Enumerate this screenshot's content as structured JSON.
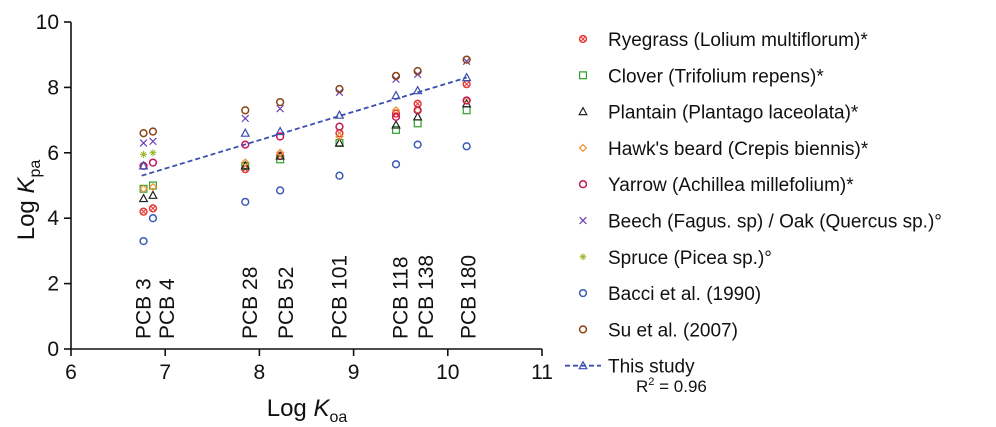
{
  "chart_data": {
    "type": "scatter",
    "xlabel": {
      "main": "Log ",
      "italic": "K",
      "sub": "oa"
    },
    "ylabel": {
      "main": "Log ",
      "italic": "K",
      "sub": "pa"
    },
    "xlim": [
      6,
      11
    ],
    "ylim": [
      0,
      10
    ],
    "xticks": [
      6,
      7,
      8,
      9,
      10,
      11
    ],
    "yticks": [
      0,
      2,
      4,
      6,
      8,
      10
    ],
    "grid": false,
    "legend_position": "right",
    "pcb_labels": [
      {
        "x": 6.77,
        "label": "PCB 3"
      },
      {
        "x": 7.02,
        "label": "PCB 4"
      },
      {
        "x": 7.9,
        "label": "PCB 28"
      },
      {
        "x": 8.28,
        "label": "PCB 52"
      },
      {
        "x": 8.85,
        "label": "PCB 101"
      },
      {
        "x": 9.5,
        "label": "PCB 118"
      },
      {
        "x": 9.77,
        "label": "PCB 138"
      },
      {
        "x": 10.22,
        "label": "PCB 180"
      }
    ],
    "series": [
      {
        "name": "Ryegrass (Lolium multiflorum)*",
        "marker": "circle-x",
        "color": "#e53935",
        "points": [
          [
            6.77,
            4.2
          ],
          [
            6.87,
            4.3
          ],
          [
            7.85,
            5.5
          ],
          [
            8.22,
            5.9
          ],
          [
            8.85,
            6.6
          ],
          [
            9.45,
            7.2
          ],
          [
            9.68,
            7.5
          ],
          [
            10.2,
            8.1
          ]
        ]
      },
      {
        "name": "Clover (Trifolium repens)*",
        "marker": "square",
        "color": "#2ca02c",
        "points": [
          [
            6.77,
            4.9
          ],
          [
            6.87,
            5.0
          ],
          [
            7.85,
            5.6
          ],
          [
            8.22,
            5.8
          ],
          [
            8.85,
            6.3
          ],
          [
            9.45,
            6.7
          ],
          [
            9.68,
            6.9
          ],
          [
            10.2,
            7.3
          ]
        ]
      },
      {
        "name": "Plantain (Plantago laceolata)*",
        "marker": "triangle",
        "color": "#222222",
        "points": [
          [
            6.77,
            4.6
          ],
          [
            6.87,
            4.7
          ],
          [
            7.85,
            5.6
          ],
          [
            8.22,
            5.9
          ],
          [
            8.85,
            6.3
          ],
          [
            9.45,
            6.85
          ],
          [
            9.68,
            7.1
          ],
          [
            10.2,
            7.5
          ]
        ]
      },
      {
        "name": "Hawk's beard (Crepis biennis)*",
        "marker": "diamond",
        "color": "#f28e2b",
        "points": [
          [
            6.77,
            4.9
          ],
          [
            6.87,
            4.95
          ],
          [
            7.85,
            5.7
          ],
          [
            8.22,
            6.0
          ],
          [
            8.85,
            6.5
          ],
          [
            9.45,
            7.3
          ],
          [
            9.68,
            7.3
          ],
          [
            10.2,
            7.6
          ]
        ]
      },
      {
        "name": "Yarrow (Achillea millefolium)*",
        "marker": "circle",
        "color": "#c2185b",
        "points": [
          [
            6.77,
            5.6
          ],
          [
            6.87,
            5.7
          ],
          [
            7.85,
            6.25
          ],
          [
            8.22,
            6.5
          ],
          [
            8.85,
            6.8
          ],
          [
            9.45,
            7.1
          ],
          [
            9.68,
            7.3
          ],
          [
            10.2,
            7.6
          ]
        ]
      },
      {
        "name": "Beech (Fagus. sp) / Oak (Quercus sp.)°",
        "marker": "x",
        "color": "#6a3fb5",
        "points": [
          [
            6.77,
            6.3
          ],
          [
            6.87,
            6.35
          ],
          [
            7.85,
            7.05
          ],
          [
            8.22,
            7.35
          ],
          [
            8.85,
            7.85
          ],
          [
            9.45,
            8.25
          ],
          [
            9.68,
            8.4
          ],
          [
            10.2,
            8.8
          ]
        ]
      },
      {
        "name": "Spruce (Picea sp.)°",
        "marker": "star",
        "color": "#9bb52d",
        "points": [
          [
            6.77,
            5.95
          ],
          [
            6.87,
            6.0
          ]
        ]
      },
      {
        "name": "Bacci et al. (1990)",
        "marker": "circle",
        "color": "#3b5bb5",
        "points": [
          [
            6.77,
            3.3
          ],
          [
            6.87,
            4.0
          ],
          [
            7.85,
            4.5
          ],
          [
            8.22,
            4.85
          ],
          [
            8.85,
            5.3
          ],
          [
            9.45,
            5.65
          ],
          [
            9.68,
            6.25
          ],
          [
            10.2,
            6.2
          ]
        ]
      },
      {
        "name": "Su et al. (2007)",
        "marker": "circle",
        "color": "#8b4513",
        "points": [
          [
            6.77,
            6.6
          ],
          [
            6.87,
            6.65
          ],
          [
            7.85,
            7.3
          ],
          [
            8.22,
            7.55
          ],
          [
            8.85,
            7.95
          ],
          [
            9.45,
            8.35
          ],
          [
            9.68,
            8.5
          ],
          [
            10.2,
            8.85
          ]
        ]
      },
      {
        "name": "This study",
        "marker": "triangle-dashed-line",
        "color": "#3a4fb0",
        "points": [
          [
            6.77,
            5.6
          ],
          [
            7.85,
            6.6
          ],
          [
            8.22,
            6.65
          ],
          [
            8.85,
            7.15
          ],
          [
            9.45,
            7.75
          ],
          [
            9.68,
            7.9
          ],
          [
            10.2,
            8.3
          ]
        ],
        "fit": [
          [
            6.75,
            5.3
          ],
          [
            10.2,
            8.3
          ]
        ]
      }
    ],
    "annotation": {
      "prefix": "R",
      "sup": "2",
      "suffix": " = 0.96"
    }
  }
}
